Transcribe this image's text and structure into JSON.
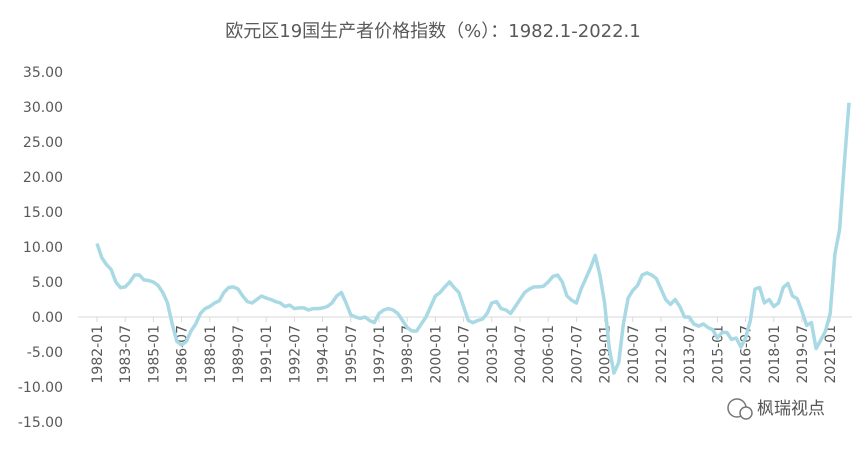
{
  "chart_data": {
    "type": "line",
    "title": "欧元区19国生产者价格指数（%）：1982.1-2022.1",
    "watermark": "枫瑞视点",
    "categories": [
      "1982-01",
      null,
      null,
      null,
      null,
      null,
      "1983-07",
      null,
      null,
      null,
      null,
      null,
      "1985-01",
      null,
      null,
      null,
      null,
      null,
      "1986-07",
      null,
      null,
      null,
      null,
      null,
      "1988-01",
      null,
      null,
      null,
      null,
      null,
      "1989-07",
      null,
      null,
      null,
      null,
      null,
      "1991-01",
      null,
      null,
      null,
      null,
      null,
      "1992-07",
      null,
      null,
      null,
      null,
      null,
      "1994-01",
      null,
      null,
      null,
      null,
      null,
      "1995-07",
      null,
      null,
      null,
      null,
      null,
      "1997-01",
      null,
      null,
      null,
      null,
      null,
      "1998-07",
      null,
      null,
      null,
      null,
      null,
      "2000-01",
      null,
      null,
      null,
      null,
      null,
      "2001-07",
      null,
      null,
      null,
      null,
      null,
      "2003-01",
      null,
      null,
      null,
      null,
      null,
      "2004-07",
      null,
      null,
      null,
      null,
      null,
      "2006-01",
      null,
      null,
      null,
      null,
      null,
      "2007-07",
      null,
      null,
      null,
      null,
      null,
      "2009-01",
      null,
      null,
      null,
      null,
      null,
      "2010-07",
      null,
      null,
      null,
      null,
      null,
      "2012-01",
      null,
      null,
      null,
      null,
      null,
      "2013-07",
      null,
      null,
      null,
      null,
      null,
      "2015-01",
      null,
      null,
      null,
      null,
      null,
      "2016-07",
      null,
      null,
      null,
      null,
      null,
      "2018-01",
      null,
      null,
      null,
      null,
      null,
      "2019-07",
      null,
      null,
      null,
      null,
      null,
      "2021-01",
      null,
      null,
      null,
      null
    ],
    "series": [
      {
        "color": "#a9d9e4",
        "values": [
          10.5,
          8.5,
          7.5,
          6.8,
          5,
          4.2,
          4.3,
          5,
          6,
          6,
          5.3,
          5.2,
          5,
          4.5,
          3.5,
          2,
          -1,
          -3.5,
          -4,
          -3.5,
          -2,
          -1,
          0.5,
          1.2,
          1.5,
          2,
          2.3,
          3.5,
          4.2,
          4.3,
          4,
          3,
          2.2,
          2,
          2.5,
          3,
          2.7,
          2.5,
          2.2,
          2,
          1.5,
          1.7,
          1.2,
          1.3,
          1.3,
          1,
          1.2,
          1.2,
          1.3,
          1.5,
          2,
          3,
          3.5,
          2,
          0.3,
          0,
          -0.2,
          0,
          -0.5,
          -0.8,
          0.5,
          1,
          1.2,
          1,
          0.5,
          -0.5,
          -1.5,
          -2,
          -2,
          -1,
          0,
          1.5,
          3,
          3.5,
          4.3,
          5,
          4.2,
          3.5,
          1.5,
          -0.5,
          -0.8,
          -0.5,
          -0.3,
          0.5,
          2,
          2.2,
          1.2,
          1,
          0.5,
          1.5,
          2.5,
          3.5,
          4,
          4.3,
          4.3,
          4.4,
          5,
          5.8,
          6,
          5,
          3,
          2.4,
          2,
          4,
          5.5,
          7,
          8.8,
          6,
          2,
          -4.5,
          -8,
          -6.5,
          -1,
          2.7,
          3.8,
          4.5,
          6,
          6.3,
          6,
          5.5,
          4,
          2.5,
          1.8,
          2.5,
          1.5,
          0,
          0,
          -1,
          -1.3,
          -1,
          -1.5,
          -1.8,
          -3,
          -2.2,
          -2.2,
          -3.2,
          -3,
          -4.3,
          -3,
          -0.5,
          4,
          4.2,
          2,
          2.5,
          1.5,
          2,
          4.2,
          4.8,
          3,
          2.6,
          0.8,
          -1.2,
          -0.8,
          -4.5,
          -3.3,
          -2,
          0.5,
          9,
          12.5,
          21.9,
          30.6
        ]
      }
    ],
    "ylim": [
      -15,
      35
    ],
    "yticks": [
      {
        "value": -15,
        "label": "-15.00"
      },
      {
        "value": -10,
        "label": "-10.00"
      },
      {
        "value": -5,
        "label": "-5.00"
      },
      {
        "value": 0,
        "label": "0.00"
      },
      {
        "value": 5,
        "label": "5.00"
      },
      {
        "value": 10,
        "label": "10.00"
      },
      {
        "value": 15,
        "label": "15.00"
      },
      {
        "value": 20,
        "label": "20.00"
      },
      {
        "value": 25,
        "label": "25.00"
      },
      {
        "value": 30,
        "label": "30.00"
      },
      {
        "value": 35,
        "label": "35.00"
      }
    ],
    "grid": false
  }
}
